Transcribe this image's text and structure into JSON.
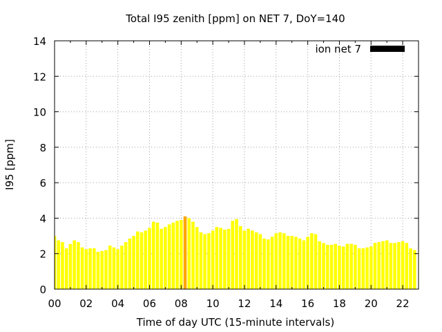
{
  "chart_data": {
    "type": "bar",
    "title": "Total I95 zenith [ppm] on NET 7, DoY=140",
    "xlabel": "Time of day UTC (15-minute intervals)",
    "ylabel": "I95 [ppm]",
    "xlim": [
      0,
      23
    ],
    "ylim": [
      0,
      14
    ],
    "y_ticks": [
      0,
      2,
      4,
      6,
      8,
      10,
      12,
      14
    ],
    "x_ticks": [
      {
        "value": 0,
        "label": "00"
      },
      {
        "value": 2,
        "label": "02"
      },
      {
        "value": 4,
        "label": "04"
      },
      {
        "value": 6,
        "label": "06"
      },
      {
        "value": 8,
        "label": "08"
      },
      {
        "value": 10,
        "label": "10"
      },
      {
        "value": 12,
        "label": "12"
      },
      {
        "value": 14,
        "label": "14"
      },
      {
        "value": 16,
        "label": "16"
      },
      {
        "value": 18,
        "label": "18"
      },
      {
        "value": 20,
        "label": "20"
      },
      {
        "value": 22,
        "label": "22"
      }
    ],
    "grid": true,
    "legend": {
      "position": "top-right",
      "entries": [
        {
          "label": "ion net 7",
          "color": "#000000"
        }
      ]
    },
    "bar_color": "#ffff00",
    "highlight_color": "#ffa500",
    "highlight_index": 33,
    "interval_hours": 0.25,
    "series": [
      {
        "name": "ion net 7",
        "values": [
          3.0,
          2.75,
          2.65,
          2.3,
          2.55,
          2.75,
          2.65,
          2.35,
          2.25,
          2.3,
          2.3,
          2.1,
          2.15,
          2.2,
          2.45,
          2.35,
          2.25,
          2.45,
          2.65,
          2.85,
          3.0,
          3.25,
          3.2,
          3.3,
          3.45,
          3.8,
          3.75,
          3.4,
          3.5,
          3.65,
          3.75,
          3.85,
          3.9,
          4.1,
          4.0,
          3.8,
          3.5,
          3.2,
          3.1,
          3.15,
          3.3,
          3.5,
          3.45,
          3.35,
          3.4,
          3.85,
          3.95,
          3.55,
          3.3,
          3.4,
          3.3,
          3.2,
          3.1,
          2.85,
          2.8,
          2.95,
          3.15,
          3.2,
          3.15,
          3.0,
          3.0,
          2.95,
          2.85,
          2.75,
          2.95,
          3.15,
          3.1,
          2.7,
          2.6,
          2.5,
          2.5,
          2.55,
          2.45,
          2.4,
          2.55,
          2.55,
          2.5,
          2.3,
          2.3,
          2.35,
          2.4,
          2.6,
          2.65,
          2.7,
          2.75,
          2.6,
          2.6,
          2.65,
          2.7,
          2.6,
          2.3,
          2.2
        ]
      }
    ]
  }
}
